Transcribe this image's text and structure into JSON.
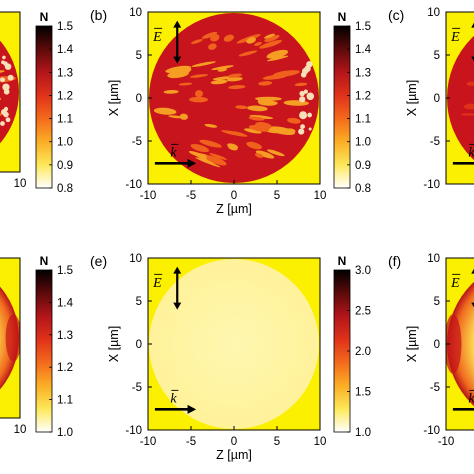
{
  "figure": {
    "panels": [
      {
        "label": "",
        "x_ticks": [
          "10"
        ],
        "y_ticks": [],
        "xlabel": "",
        "ylabel": "",
        "field": "pattern-strong",
        "arrows": false,
        "colorbar": {
          "title": "N",
          "min": 0.8,
          "max": 1.5,
          "ticks": [
            "1.5",
            "1.4",
            "1.3",
            "1.2",
            "1.1",
            "1.0",
            "0.9",
            "0.8"
          ]
        }
      },
      {
        "label": "(b)",
        "x_ticks": [
          "-10",
          "-5",
          "0",
          "5",
          "10"
        ],
        "y_ticks": [
          "10",
          "5",
          "0",
          "-5",
          "-10"
        ],
        "xlabel": "Z [µm]",
        "ylabel": "X [µm]",
        "field": "pattern-strong",
        "arrows": true,
        "colorbar": {
          "title": "N",
          "min": 0.8,
          "max": 1.5,
          "ticks": [
            "1.5",
            "1.4",
            "1.3",
            "1.2",
            "1.1",
            "1.0",
            "0.9",
            "0.8"
          ]
        }
      },
      {
        "label": "(c)",
        "x_ticks": [],
        "y_ticks": [
          "10",
          "5",
          "0",
          "-5",
          "-10"
        ],
        "xlabel": "",
        "ylabel": "X [µm]",
        "field": "red",
        "arrows": true
      },
      {
        "label": "",
        "x_ticks": [
          "10"
        ],
        "y_ticks": [],
        "xlabel": "",
        "ylabel": "",
        "field": "edge-right",
        "arrows": false,
        "colorbar": {
          "title": "N",
          "min": 1.0,
          "max": 1.5,
          "ticks": [
            "1.5",
            "1.4",
            "1.3",
            "1.2",
            "1.1",
            "1.0"
          ]
        }
      },
      {
        "label": "(e)",
        "x_ticks": [
          "-10",
          "-5",
          "0",
          "5",
          "10"
        ],
        "y_ticks": [
          "10",
          "5",
          "0",
          "-5",
          "-10"
        ],
        "xlabel": "Z [µm]",
        "ylabel": "X [µm]",
        "field": "flat-hotspot",
        "arrows": true,
        "colorbar": {
          "title": "N",
          "min": 1.0,
          "max": 3.0,
          "ticks": [
            "3.0",
            "2.5",
            "2.0",
            "1.5",
            "1.0"
          ]
        }
      },
      {
        "label": "(f)",
        "x_ticks": [
          "-10"
        ],
        "y_ticks": [
          "10",
          "5",
          "0",
          "-5",
          "-10"
        ],
        "xlabel": "",
        "ylabel": "X [µm]",
        "field": "edge-left",
        "arrows": true
      }
    ],
    "vectors": {
      "e": "E",
      "k": "k"
    },
    "colors": {
      "background": "#fbf000",
      "disk_deep": "#c8141c",
      "disk_light": "#fff5a0",
      "hotspot": "#e23a18",
      "colormap": [
        "#000000",
        "#5c0a0a",
        "#b3151a",
        "#e0321a",
        "#f46a1c",
        "#fbae25",
        "#fde85a",
        "#ffffff"
      ]
    }
  }
}
